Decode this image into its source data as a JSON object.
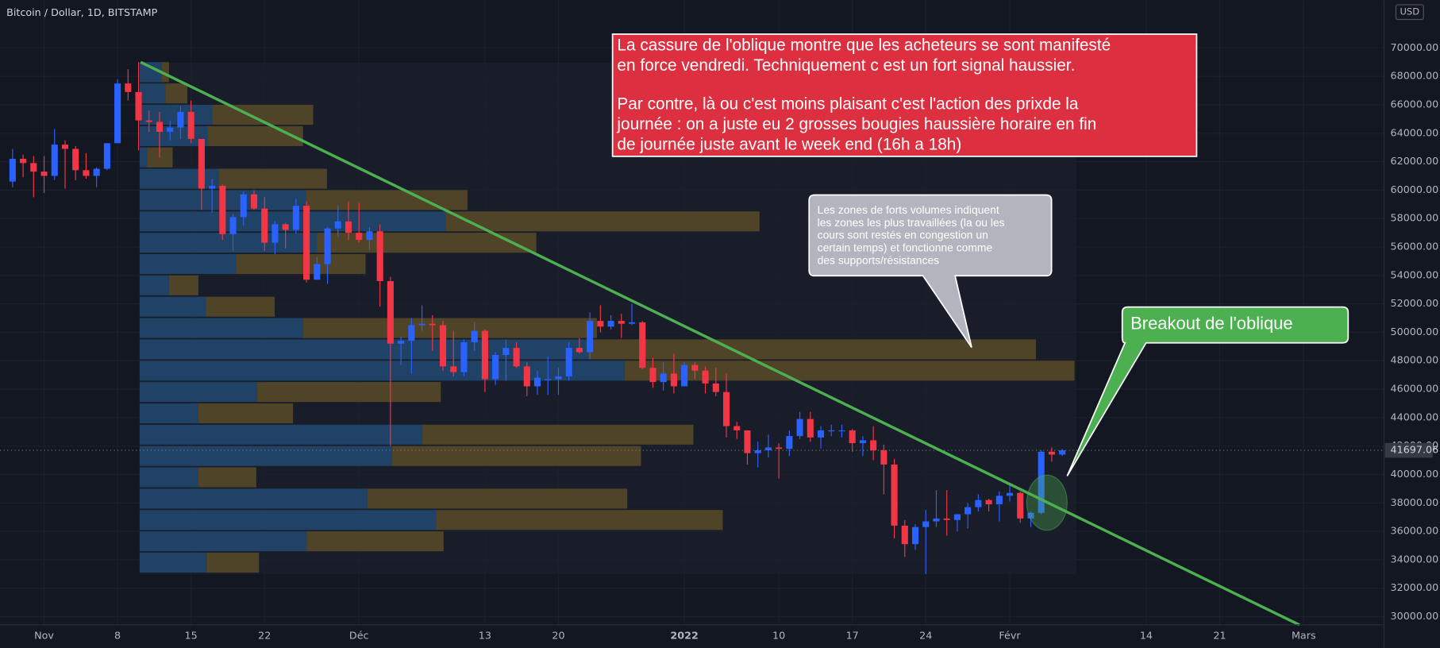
{
  "chart_data": {
    "type": "candlestick",
    "title": "Bitcoin / Dollar, 1D, BITSTAMP",
    "currency": "USD",
    "up_color": "#2962ff",
    "down_color": "#f23645",
    "grid": true,
    "x": [
      -3,
      -2,
      -1,
      0,
      1,
      2,
      3,
      4,
      5,
      6,
      7,
      8,
      9,
      10,
      11,
      12,
      13,
      14,
      15,
      16,
      17,
      18,
      19,
      20,
      21,
      22,
      23,
      24,
      25,
      26,
      27,
      28,
      29,
      30,
      31,
      32,
      33,
      34,
      35,
      36,
      37,
      38,
      39,
      40,
      41,
      42,
      43,
      44,
      45,
      46,
      47,
      48,
      49,
      50,
      51,
      52,
      53,
      54,
      55,
      56,
      57,
      58,
      59,
      60,
      61,
      62,
      63,
      64,
      65,
      66,
      67,
      68,
      69,
      70,
      71,
      72,
      73,
      74,
      75,
      76,
      77,
      78,
      79,
      80,
      81,
      82,
      83,
      84,
      85,
      86,
      87,
      88,
      89,
      90,
      91,
      92,
      93,
      94,
      95,
      96,
      97
    ],
    "open": [
      60600,
      62200,
      61900,
      61300,
      61000,
      63200,
      62900,
      61400,
      61000,
      61500,
      63300,
      67500,
      66900,
      64900,
      64800,
      64100,
      64400,
      65500,
      63600,
      60100,
      60300,
      56900,
      58100,
      59700,
      58700,
      56300,
      57600,
      57200,
      58900,
      53700,
      54800,
      57300,
      57800,
      57000,
      56500,
      57100,
      53600,
      49200,
      49400,
      50500,
      50600,
      50500,
      47600,
      47200,
      49300,
      50100,
      46700,
      48400,
      48900,
      47600,
      46200,
      46700,
      46700,
      46900,
      48900,
      48600,
      50800,
      50400,
      50800,
      50600,
      50700,
      47500,
      46500,
      47100,
      46200,
      47700,
      47300,
      46400,
      45800,
      43400,
      43100,
      41500,
      41700,
      41900,
      41800,
      42700,
      43900,
      42600,
      43100,
      43100,
      43100,
      42200,
      42400,
      41700,
      40700,
      36400,
      35100,
      36300,
      36700,
      36900,
      36800,
      37200,
      37700,
      38200,
      37900,
      38500,
      38700,
      36900,
      37300,
      41600,
      41400
    ],
    "high": [
      62900,
      62500,
      62400,
      62400,
      64300,
      63500,
      63100,
      62600,
      61600,
      63300,
      67800,
      68500,
      69000,
      65600,
      65500,
      64900,
      65900,
      66300,
      63600,
      60800,
      60400,
      58300,
      59900,
      60000,
      59500,
      57800,
      57700,
      59400,
      59200,
      55300,
      57400,
      58900,
      59200,
      59100,
      57400,
      57600,
      53900,
      49700,
      51000,
      51900,
      51200,
      50800,
      50100,
      49500,
      50700,
      50200,
      48600,
      49500,
      49300,
      47900,
      47300,
      48300,
      47500,
      49300,
      49600,
      51400,
      51900,
      51200,
      51300,
      52000,
      50800,
      48200,
      47900,
      48500,
      47900,
      47900,
      47600,
      47500,
      47100,
      43700,
      43100,
      42300,
      42800,
      42200,
      43100,
      44400,
      44400,
      43400,
      43500,
      43500,
      43200,
      42700,
      43400,
      42100,
      41100,
      36800,
      36500,
      37500,
      38900,
      38900,
      37200,
      38000,
      38600,
      38300,
      38800,
      39300,
      38800,
      37400,
      41700,
      41900,
      41800
    ],
    "low": [
      60200,
      60900,
      59500,
      59800,
      60700,
      60100,
      60700,
      60800,
      60200,
      61400,
      63300,
      66300,
      62800,
      64100,
      62300,
      63500,
      63600,
      63300,
      58600,
      58400,
      56500,
      55700,
      57500,
      58600,
      55700,
      55500,
      55900,
      56900,
      53500,
      53700,
      53400,
      56700,
      56500,
      56300,
      55800,
      51800,
      42000,
      47700,
      47100,
      50100,
      48700,
      47300,
      46900,
      46900,
      48700,
      45800,
      46300,
      46600,
      47500,
      45500,
      45600,
      45600,
      45600,
      46600,
      48500,
      48100,
      50000,
      50200,
      49600,
      50500,
      47400,
      46100,
      45900,
      45700,
      46200,
      46700,
      45700,
      45500,
      42600,
      42500,
      40700,
      40500,
      41200,
      39700,
      41300,
      42500,
      42300,
      41800,
      42700,
      42600,
      41600,
      41300,
      41000,
      38600,
      35500,
      34200,
      34700,
      33000,
      36300,
      35700,
      36000,
      36200,
      37400,
      37400,
      36700,
      38100,
      36600,
      36300,
      37200,
      40900,
      41300
    ],
    "close": [
      62200,
      61900,
      61300,
      61000,
      63200,
      62900,
      61400,
      61000,
      61500,
      63300,
      67500,
      66900,
      64900,
      64800,
      64100,
      64400,
      65500,
      63600,
      60100,
      60300,
      56900,
      58100,
      59700,
      58700,
      56300,
      57600,
      57200,
      58900,
      53700,
      54800,
      57300,
      57800,
      57000,
      56500,
      57100,
      53600,
      49200,
      49400,
      50500,
      50600,
      50500,
      47600,
      47200,
      49300,
      50100,
      46700,
      48400,
      48900,
      47600,
      46200,
      46800,
      46700,
      46900,
      48900,
      48600,
      50800,
      50400,
      50800,
      50600,
      50700,
      47500,
      46500,
      47100,
      46200,
      47700,
      47300,
      46400,
      45800,
      43400,
      43100,
      41500,
      41700,
      41900,
      41800,
      42700,
      43900,
      42600,
      43100,
      43100,
      43100,
      42200,
      42400,
      41700,
      40700,
      36400,
      35100,
      36300,
      36700,
      36900,
      36800,
      37200,
      37700,
      38200,
      37900,
      38500,
      38700,
      36900,
      37300,
      41600,
      41400,
      41697.06
    ],
    "xlim": [
      -4.2,
      127.65
    ],
    "xticks": [
      {
        "value": 0,
        "label": "Nov"
      },
      {
        "value": 7,
        "label": "8"
      },
      {
        "value": 14,
        "label": "15"
      },
      {
        "value": 21,
        "label": "22"
      },
      {
        "value": 30,
        "label": "Déc"
      },
      {
        "value": 42,
        "label": "13"
      },
      {
        "value": 49,
        "label": "20"
      },
      {
        "value": 61,
        "label": "2022"
      },
      {
        "value": 70,
        "label": "10"
      },
      {
        "value": 77,
        "label": "17"
      },
      {
        "value": 84,
        "label": "24"
      },
      {
        "value": 92,
        "label": "Févr"
      },
      {
        "value": 105,
        "label": "14"
      },
      {
        "value": 112,
        "label": "21"
      },
      {
        "value": 120,
        "label": "Mars"
      }
    ],
    "ylim": [
      29420,
      73360
    ],
    "yticks": [
      {
        "value": 30000,
        "label": "30000.00"
      },
      {
        "value": 32000,
        "label": "32000.00"
      },
      {
        "value": 34000,
        "label": "34000.00"
      },
      {
        "value": 36000,
        "label": "36000.00"
      },
      {
        "value": 38000,
        "label": "38000.00"
      },
      {
        "value": 40000,
        "label": "40000.00"
      },
      {
        "value": 42000,
        "label": "42000.00"
      },
      {
        "value": 44000,
        "label": "44000.00"
      },
      {
        "value": 46000,
        "label": "46000.00"
      },
      {
        "value": 48000,
        "label": "48000.00"
      },
      {
        "value": 50000,
        "label": "50000.00"
      },
      {
        "value": 52000,
        "label": "52000.00"
      },
      {
        "value": 54000,
        "label": "54000.00"
      },
      {
        "value": 56000,
        "label": "56000.00"
      },
      {
        "value": 58000,
        "label": "58000.00"
      },
      {
        "value": 60000,
        "label": "60000.00"
      },
      {
        "value": 62000,
        "label": "62000.00"
      },
      {
        "value": 64000,
        "label": "64000.00"
      },
      {
        "value": 66000,
        "label": "66000.00"
      },
      {
        "value": 68000,
        "label": "68000.00"
      },
      {
        "value": 70000,
        "label": "70000.00"
      }
    ],
    "volume_profile": {
      "start_x": 9.1,
      "price_bins": [
        69000,
        67500,
        66000,
        64500,
        63000,
        61500,
        60000,
        58500,
        57000,
        55500,
        54000,
        52500,
        51000,
        49500,
        48000,
        46500,
        45000,
        43500,
        42000,
        40500,
        39000,
        37500,
        36000,
        34500,
        33000
      ],
      "buy": [
        24,
        28,
        79,
        74,
        8,
        86,
        181,
        333,
        193,
        105,
        32,
        72,
        178,
        488,
        528,
        128,
        64,
        308,
        275,
        64,
        248,
        323,
        182,
        73
      ],
      "sell": [
        8,
        24,
        110,
        104,
        28,
        118,
        176,
        342,
        239,
        141,
        32,
        75,
        320,
        488,
        490,
        200,
        103,
        295,
        271,
        63,
        283,
        312,
        149,
        57
      ],
      "buy_color": "#1f4266",
      "sell_color": "#4f4428"
    },
    "trendline": {
      "x": [
        9.2,
        119.6
      ],
      "y": [
        69000,
        29420
      ],
      "color": "#4caf50"
    },
    "annotations": {
      "red_box": {
        "color": "#dc3040",
        "lines": [
          "La cassure de l'oblique montre que les acheteurs se sont manifesté",
          "en force vendredi. Techniquement c est un fort signal haussier.",
          "Par contre, là ou c'est moins plaisant c'est l'action des prixde la",
          "journée : on a juste eu 2 grosses bougies haussière horaire en fin",
          "de journée juste avant le week end (16h a 18h)"
        ]
      },
      "callout": {
        "color": "#b2b5be",
        "lines": [
          "Les zones de forts volumes indiquent",
          "les zones les plus travaillées (la ou les",
          "cours sont restés en congestion un",
          "certain temps) et fonctionne comme",
          "des supports/résistances"
        ]
      },
      "breakout": {
        "color": "#4caf50",
        "text": "Breakout de l'oblique"
      }
    }
  }
}
